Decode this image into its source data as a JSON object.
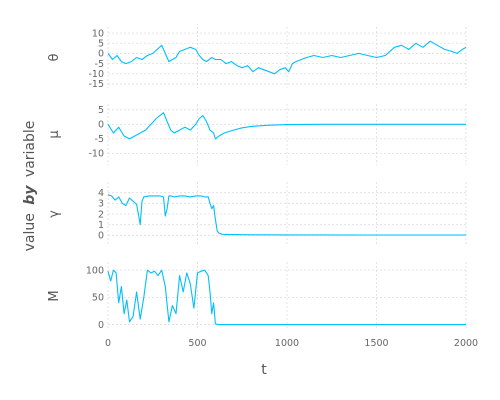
{
  "chart_data": {
    "type": "line",
    "xlabel": "t",
    "ylabel_parts": [
      "value",
      "by",
      "variable"
    ],
    "x_ticks": [
      0,
      500,
      1000,
      1500,
      2000
    ],
    "xlim": [
      0,
      2000
    ],
    "grid": true,
    "color": "#00bfff",
    "panels": [
      {
        "name": "θ",
        "ylim": [
          -17,
          13
        ],
        "y_ticks": [
          10,
          5,
          0,
          -5,
          -10,
          -15
        ],
        "x": [
          0,
          25,
          50,
          75,
          100,
          130,
          160,
          190,
          220,
          250,
          275,
          300,
          320,
          340,
          360,
          380,
          400,
          430,
          460,
          490,
          510,
          530,
          550,
          580,
          600,
          630,
          660,
          690,
          720,
          750,
          780,
          810,
          840,
          870,
          900,
          930,
          960,
          990,
          1010,
          1030,
          1050,
          1080,
          1110,
          1150,
          1200,
          1250,
          1300,
          1350,
          1400,
          1450,
          1500,
          1550,
          1600,
          1640,
          1680,
          1720,
          1760,
          1800,
          1840,
          1880,
          1920,
          1950,
          1980,
          2000
        ],
        "values": [
          0,
          -3,
          -1,
          -4,
          -5,
          -4,
          -2,
          -3,
          -1,
          0,
          2,
          4,
          0,
          -4,
          -3,
          -2,
          1,
          2,
          3,
          2,
          -1,
          -3,
          -4,
          -2,
          -3,
          -3,
          -5,
          -4,
          -6,
          -7,
          -6,
          -9,
          -7,
          -8,
          -9,
          -10,
          -8,
          -7,
          -9,
          -5,
          -4,
          -3,
          -2,
          -1,
          -2,
          -1,
          -2,
          -1,
          0,
          -1,
          -2,
          -1,
          3,
          4,
          2,
          5,
          3,
          6,
          4,
          2,
          1,
          0,
          2,
          3
        ]
      },
      {
        "name": "μ",
        "ylim": [
          -14,
          7
        ],
        "y_ticks": [
          5,
          0,
          -5,
          -10
        ],
        "x": [
          0,
          30,
          60,
          90,
          120,
          150,
          180,
          210,
          240,
          270,
          290,
          310,
          330,
          350,
          370,
          400,
          430,
          460,
          490,
          510,
          530,
          550,
          570,
          590,
          600,
          620,
          650,
          700,
          750,
          800,
          900,
          1000,
          1200,
          1500,
          1800,
          2000
        ],
        "values": [
          0,
          -3,
          -1,
          -4,
          -5,
          -4,
          -3,
          -2,
          0,
          2,
          3,
          4,
          1,
          -2,
          -3,
          -2,
          -1,
          -2,
          0,
          2,
          3,
          1,
          -2,
          -3,
          -5,
          -4,
          -3,
          -2,
          -1.2,
          -0.7,
          -0.3,
          -0.1,
          0,
          0,
          0,
          0
        ]
      },
      {
        "name": "γ",
        "ylim": [
          -1,
          5
        ],
        "y_ticks": [
          4,
          3,
          2,
          1,
          0
        ],
        "x": [
          0,
          20,
          40,
          60,
          80,
          100,
          120,
          140,
          160,
          170,
          180,
          190,
          200,
          230,
          260,
          290,
          310,
          320,
          330,
          340,
          350,
          370,
          400,
          430,
          460,
          490,
          520,
          540,
          560,
          570,
          580,
          590,
          600,
          610,
          620,
          640,
          700,
          800,
          1000,
          1500,
          2000
        ],
        "values": [
          3.8,
          3.7,
          3.3,
          3.6,
          3.0,
          2.8,
          3.5,
          3.2,
          2.9,
          2.0,
          1.0,
          3.2,
          3.6,
          3.7,
          3.7,
          3.7,
          3.6,
          1.8,
          2.5,
          3.7,
          3.7,
          3.6,
          3.7,
          3.7,
          3.6,
          3.7,
          3.7,
          3.6,
          3.6,
          3.0,
          2.5,
          2.8,
          1.5,
          0.4,
          0.2,
          0.1,
          0.07,
          0.05,
          0.04,
          0.03,
          0.03
        ]
      },
      {
        "name": "M",
        "ylim": [
          -10,
          115
        ],
        "y_ticks": [
          100,
          50,
          0
        ],
        "x": [
          0,
          15,
          30,
          45,
          60,
          75,
          90,
          105,
          120,
          140,
          160,
          180,
          200,
          220,
          240,
          260,
          280,
          300,
          320,
          340,
          360,
          380,
          400,
          420,
          440,
          460,
          480,
          500,
          520,
          540,
          560,
          570,
          580,
          590,
          600,
          620,
          700,
          800,
          1000,
          1500,
          2000
        ],
        "values": [
          98,
          80,
          100,
          95,
          40,
          70,
          20,
          45,
          5,
          15,
          60,
          10,
          50,
          100,
          95,
          98,
          90,
          100,
          70,
          5,
          35,
          20,
          90,
          60,
          95,
          75,
          30,
          95,
          98,
          100,
          90,
          60,
          20,
          40,
          1,
          0,
          0,
          0,
          0,
          0,
          0
        ]
      }
    ]
  }
}
